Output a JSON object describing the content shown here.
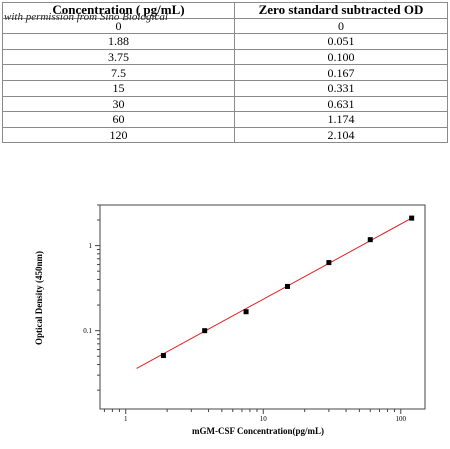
{
  "table": {
    "headers": [
      "Concentration ( pg/mL)",
      "Zero standard subtracted OD"
    ],
    "watermark": "with permission from Sino Biological",
    "rows": [
      [
        "0",
        "0"
      ],
      [
        "1.88",
        "0.051"
      ],
      [
        "3.75",
        "0.100"
      ],
      [
        "7.5",
        "0.167"
      ],
      [
        "15",
        "0.331"
      ],
      [
        "30",
        "0.631"
      ],
      [
        "60",
        "1.174"
      ],
      [
        "120",
        "2.104"
      ]
    ]
  },
  "chart_data": {
    "type": "scatter",
    "title": "",
    "xlabel": "mGM-CSF  Concentration(pg/mL)",
    "ylabel": "Optical Density (450nm)",
    "xscale": "log",
    "yscale": "log",
    "xlim": [
      0.65,
      150
    ],
    "ylim": [
      0.012,
      3
    ],
    "xticks": [
      1,
      10,
      100
    ],
    "xtick_labels": [
      "1",
      "10",
      "100"
    ],
    "yticks": [
      0.1,
      1
    ],
    "ytick_labels": [
      "0.1",
      "1"
    ],
    "series": [
      {
        "x": [
          1.88,
          3.75,
          7.5,
          15,
          30,
          60,
          120
        ],
        "y": [
          0.051,
          0.1,
          0.167,
          0.331,
          0.631,
          1.174,
          2.104
        ],
        "color": "#000000"
      }
    ],
    "fit_line": {
      "x": [
        1.2,
        120
      ],
      "y": [
        0.036,
        2.104
      ],
      "color": "#e02020"
    },
    "grid": false
  }
}
